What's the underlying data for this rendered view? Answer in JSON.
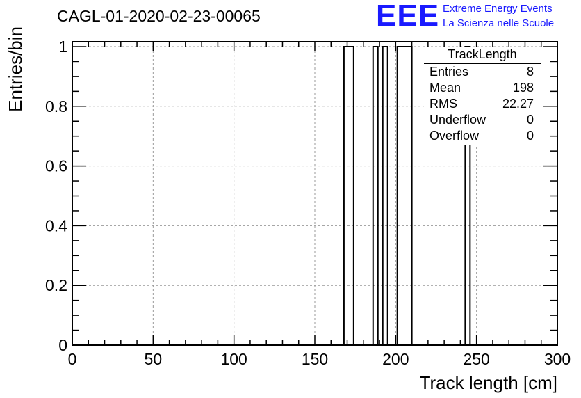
{
  "header": {
    "title": "CAGL-01-2020-02-23-00065",
    "logo_text": "EEE",
    "logo_line1": "Extreme Energy Events",
    "logo_line2": "La Scienza nelle Scuole",
    "logo_color": "#1a1aff"
  },
  "stats": {
    "name": "TrackLength",
    "rows": [
      {
        "label": "Entries",
        "value": "8"
      },
      {
        "label": "Mean",
        "value": "198"
      },
      {
        "label": "RMS",
        "value": "22.27"
      },
      {
        "label": "Underflow",
        "value": "0"
      },
      {
        "label": "Overflow",
        "value": "0"
      }
    ]
  },
  "chart_data": {
    "type": "bar",
    "xlabel": "Track length [cm]",
    "ylabel": "Entries/bin",
    "xlim": [
      0,
      300
    ],
    "ylim": [
      0,
      1
    ],
    "xticks": [
      "0",
      "50",
      "100",
      "150",
      "200",
      "250",
      "300"
    ],
    "yticks": [
      "0",
      "0.2",
      "0.4",
      "0.6",
      "0.8",
      "1"
    ],
    "grid": true,
    "bin_width": 3,
    "bins": [
      {
        "x0": 168,
        "x1": 174,
        "value": 1
      },
      {
        "x0": 186,
        "x1": 189,
        "value": 1
      },
      {
        "x0": 192,
        "x1": 195,
        "value": 1
      },
      {
        "x0": 201,
        "x1": 210,
        "value": 1
      },
      {
        "x0": 243,
        "x1": 246,
        "value": 1
      }
    ]
  }
}
